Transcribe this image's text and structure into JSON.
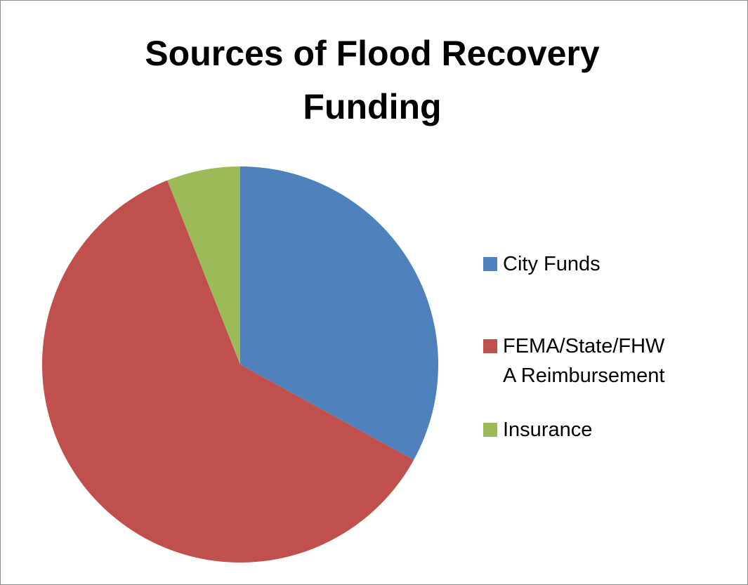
{
  "chart_data": {
    "type": "pie",
    "title_lines": [
      "Sources of Flood Recovery",
      "Funding"
    ],
    "start_angle_deg": 0,
    "direction": "clockwise",
    "series": [
      {
        "slices": [
          {
            "label": "City Funds",
            "label_lines": [
              "City Funds"
            ],
            "value": 33,
            "color": "#4F81BD"
          },
          {
            "label": "FEMA/State/FHWA Reimbursement",
            "label_lines": [
              "FEMA/State/FHW",
              "A Reimbursement"
            ],
            "value": 61,
            "color": "#C0504D"
          },
          {
            "label": "Insurance",
            "label_lines": [
              "Insurance"
            ],
            "value": 6,
            "color": "#9BBB59"
          }
        ]
      }
    ],
    "legend_position": "right"
  }
}
